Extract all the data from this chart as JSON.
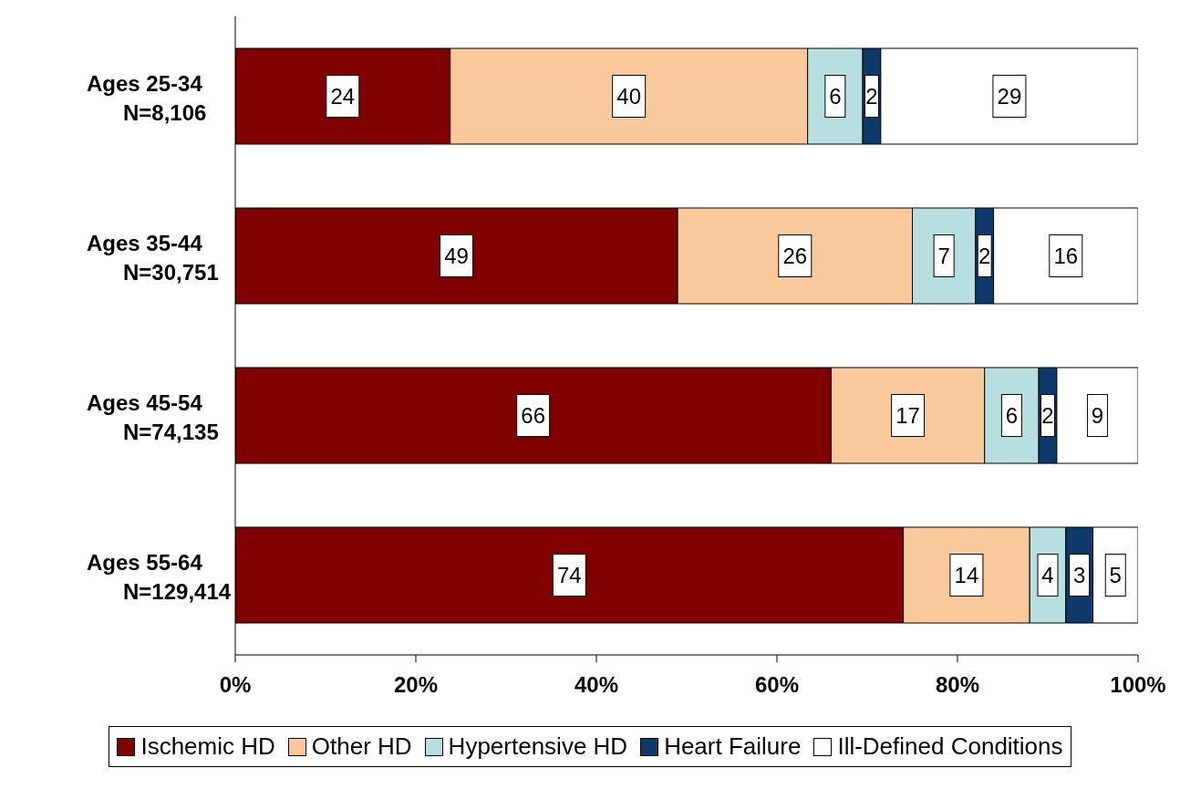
{
  "chart_data": {
    "type": "bar",
    "orientation": "horizontal",
    "stacked": true,
    "categories": [
      "Ages 25-34\nN=8,106",
      "Ages 35-44\nN=30,751",
      "Ages 45-54\nN=74,135",
      "Ages 55-64\nN=129,414"
    ],
    "series": [
      {
        "name": "Ischemic HD",
        "color": "#800000",
        "values": [
          23.8,
          49,
          66,
          74
        ],
        "value_labels": [
          "24",
          "49",
          "66",
          "74"
        ]
      },
      {
        "name": "Other HD",
        "color": "#f9c89b",
        "values": [
          39.6,
          26,
          17,
          14
        ],
        "value_labels": [
          "40",
          "26",
          "17",
          "14"
        ]
      },
      {
        "name": "Hypertensive HD",
        "color": "#b7dfe0",
        "values": [
          6.1,
          7,
          6,
          4
        ],
        "value_labels": [
          "6",
          "7",
          "6",
          "4"
        ]
      },
      {
        "name": "Heart Failure",
        "color": "#0e3a6b",
        "values": [
          2,
          2,
          2,
          3
        ],
        "value_labels": [
          "2",
          "2",
          "2",
          "3"
        ]
      },
      {
        "name": "Ill-Defined Conditions",
        "color": "#ffffff",
        "values": [
          28.5,
          16,
          9,
          5
        ],
        "value_labels": [
          "29",
          "16",
          "9",
          "5"
        ]
      }
    ],
    "xlim": [
      0,
      100
    ],
    "xticks": [
      {
        "value": 0,
        "label": "0%"
      },
      {
        "value": 20,
        "label": "20%"
      },
      {
        "value": 40,
        "label": "40%"
      },
      {
        "value": 60,
        "label": "60%"
      },
      {
        "value": 80,
        "label": "80%"
      },
      {
        "value": 100,
        "label": "100%"
      }
    ],
    "grid": false,
    "legend": "bottom"
  }
}
